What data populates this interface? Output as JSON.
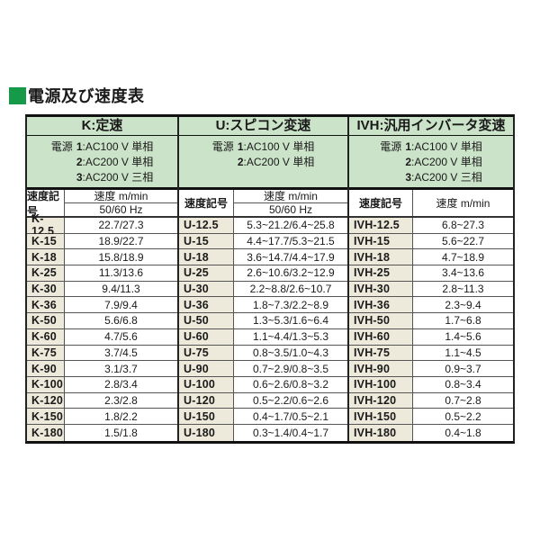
{
  "page_title": "電源及び速度表",
  "colors": {
    "header_green": "#cbe3c8",
    "symbol_beige": "#edeadb",
    "title_square_green": "#169a4a"
  },
  "table": {
    "groups": [
      {
        "id": "K",
        "header": "K:定速",
        "power_label": "電源",
        "power_lines": [
          "1:AC100 V 単相",
          "2:AC200 V 単相",
          "3:AC200 V 三相"
        ],
        "symbol_header": "速度記号",
        "speed_header": "速度 m/min",
        "speed_subheader": "50/60 Hz",
        "rows": [
          {
            "symbol": "K-12.5",
            "speed": "22.7/27.3"
          },
          {
            "symbol": "K-15",
            "speed": "18.9/22.7"
          },
          {
            "symbol": "K-18",
            "speed": "15.8/18.9"
          },
          {
            "symbol": "K-25",
            "speed": "11.3/13.6"
          },
          {
            "symbol": "K-30",
            "speed": "9.4/11.3"
          },
          {
            "symbol": "K-36",
            "speed": "7.9/9.4"
          },
          {
            "symbol": "K-50",
            "speed": "5.6/6.8"
          },
          {
            "symbol": "K-60",
            "speed": "4.7/5.6"
          },
          {
            "symbol": "K-75",
            "speed": "3.7/4.5"
          },
          {
            "symbol": "K-90",
            "speed": "3.1/3.7"
          },
          {
            "symbol": "K-100",
            "speed": "2.8/3.4"
          },
          {
            "symbol": "K-120",
            "speed": "2.3/2.8"
          },
          {
            "symbol": "K-150",
            "speed": "1.8/2.2"
          },
          {
            "symbol": "K-180",
            "speed": "1.5/1.8"
          }
        ]
      },
      {
        "id": "U",
        "header": "U:スピコン変速",
        "power_label": "電源",
        "power_lines": [
          "1:AC100 V 単相",
          "2:AC200 V 単相"
        ],
        "symbol_header": "速度記号",
        "speed_header": "速度 m/min",
        "speed_subheader": "50/60 Hz",
        "rows": [
          {
            "symbol": "U-12.5",
            "speed": "5.3~21.2/6.4~25.8"
          },
          {
            "symbol": "U-15",
            "speed": "4.4~17.7/5.3~21.5"
          },
          {
            "symbol": "U-18",
            "speed": "3.6~14.7/4.4~17.9"
          },
          {
            "symbol": "U-25",
            "speed": "2.6~10.6/3.2~12.9"
          },
          {
            "symbol": "U-30",
            "speed": "2.2~8.8/2.6~10.7"
          },
          {
            "symbol": "U-36",
            "speed": "1.8~7.3/2.2~8.9"
          },
          {
            "symbol": "U-50",
            "speed": "1.3~5.3/1.6~6.4"
          },
          {
            "symbol": "U-60",
            "speed": "1.1~4.4/1.3~5.3"
          },
          {
            "symbol": "U-75",
            "speed": "0.8~3.5/1.0~4.3"
          },
          {
            "symbol": "U-90",
            "speed": "0.7~2.9/0.8~3.5"
          },
          {
            "symbol": "U-100",
            "speed": "0.6~2.6/0.8~3.2"
          },
          {
            "symbol": "U-120",
            "speed": "0.5~2.2/0.6~2.6"
          },
          {
            "symbol": "U-150",
            "speed": "0.4~1.7/0.5~2.1"
          },
          {
            "symbol": "U-180",
            "speed": "0.3~1.4/0.4~1.7"
          }
        ]
      },
      {
        "id": "IVH",
        "header": "IVH:汎用インバータ変速",
        "power_label": "電源",
        "power_lines": [
          "1:AC100 V 単相",
          "2:AC200 V 単相",
          "3:AC200 V 三相"
        ],
        "symbol_header": "速度記号",
        "speed_header": "速度 m/min",
        "speed_subheader": null,
        "rows": [
          {
            "symbol": "IVH-12.5",
            "speed": "6.8~27.3"
          },
          {
            "symbol": "IVH-15",
            "speed": "5.6~22.7"
          },
          {
            "symbol": "IVH-18",
            "speed": "4.7~18.9"
          },
          {
            "symbol": "IVH-25",
            "speed": "3.4~13.6"
          },
          {
            "symbol": "IVH-30",
            "speed": "2.8~11.3"
          },
          {
            "symbol": "IVH-36",
            "speed": "2.3~9.4"
          },
          {
            "symbol": "IVH-50",
            "speed": "1.7~6.8"
          },
          {
            "symbol": "IVH-60",
            "speed": "1.4~5.6"
          },
          {
            "symbol": "IVH-75",
            "speed": "1.1~4.5"
          },
          {
            "symbol": "IVH-90",
            "speed": "0.9~3.7"
          },
          {
            "symbol": "IVH-100",
            "speed": "0.8~3.4"
          },
          {
            "symbol": "IVH-120",
            "speed": "0.7~2.8"
          },
          {
            "symbol": "IVH-150",
            "speed": "0.5~2.2"
          },
          {
            "symbol": "IVH-180",
            "speed": "0.4~1.8"
          }
        ]
      }
    ]
  }
}
